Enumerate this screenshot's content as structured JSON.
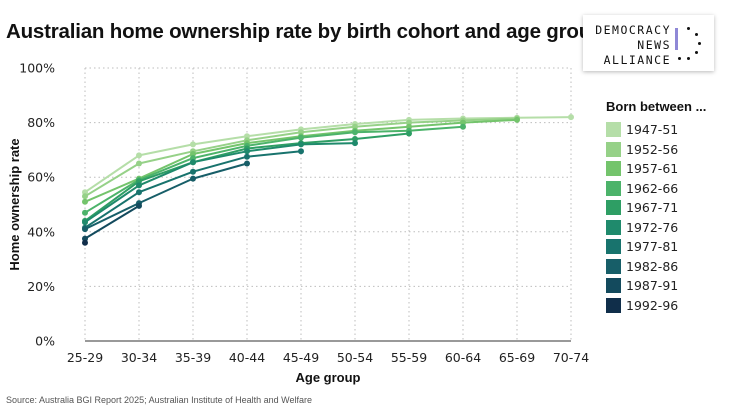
{
  "title": "Australian home ownership rate by birth cohort and age group",
  "logo": {
    "line1": "DEMOCRACY",
    "line2": "NEWS",
    "line3": "ALLIANCE",
    "accent_color": "#8f88d6"
  },
  "legend_title": "Born between ...",
  "source": "Source: Australia BGI Report 2025; Australian Institute of Health and Welfare",
  "chart_data": {
    "type": "line",
    "title": "Australian home ownership rate by birth cohort and age group",
    "xlabel": "Age group",
    "ylabel": "Home ownership rate",
    "categories": [
      "25-29",
      "30-34",
      "35-39",
      "40-44",
      "45-49",
      "50-54",
      "55-59",
      "60-64",
      "65-69",
      "70-74"
    ],
    "ylim": [
      0,
      100
    ],
    "yticks": [
      0,
      20,
      40,
      60,
      80,
      100
    ],
    "yticklabels": [
      "0%",
      "20%",
      "40%",
      "60%",
      "80%",
      "100%"
    ],
    "grid": true,
    "legend_position": "right",
    "series": [
      {
        "name": "1947-51",
        "color": "#b5dea8",
        "values": [
          54.5,
          68,
          72,
          75,
          77.5,
          79.5,
          81,
          81.5,
          81.8,
          82
        ]
      },
      {
        "name": "1952-56",
        "color": "#96d188",
        "values": [
          53,
          65,
          69.5,
          73.5,
          76.5,
          78.5,
          80,
          80.8,
          81.5,
          null
        ]
      },
      {
        "name": "1957-61",
        "color": "#74c46c",
        "values": [
          51,
          59.5,
          68.5,
          72.5,
          75,
          77,
          78.5,
          80,
          81,
          null
        ]
      },
      {
        "name": "1962-66",
        "color": "#4cb36a",
        "values": [
          47,
          59,
          67,
          71.5,
          74.5,
          76.5,
          77,
          78.5,
          null,
          null
        ]
      },
      {
        "name": "1967-71",
        "color": "#2e9e64",
        "values": [
          44,
          58.5,
          65.5,
          70.5,
          72.5,
          74,
          76,
          null,
          null,
          null
        ]
      },
      {
        "name": "1972-76",
        "color": "#1f8a6c",
        "values": [
          43.5,
          57,
          65.5,
          69.5,
          72,
          72.5,
          null,
          null,
          null,
          null
        ]
      },
      {
        "name": "1977-81",
        "color": "#18736d",
        "values": [
          41.5,
          54.5,
          62,
          67.5,
          69.5,
          null,
          null,
          null,
          null,
          null
        ]
      },
      {
        "name": "1982-86",
        "color": "#175e68",
        "values": [
          41,
          50.5,
          59.5,
          65,
          null,
          null,
          null,
          null,
          null,
          null
        ]
      },
      {
        "name": "1987-91",
        "color": "#134a5d",
        "values": [
          37.5,
          49.5,
          null,
          null,
          null,
          null,
          null,
          null,
          null,
          null
        ]
      },
      {
        "name": "1992-96",
        "color": "#102e4a",
        "values": [
          36,
          null,
          null,
          null,
          null,
          null,
          null,
          null,
          null,
          null
        ]
      }
    ]
  }
}
